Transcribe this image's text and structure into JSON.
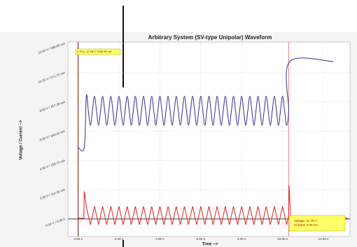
{
  "chart_data": {
    "type": "line",
    "title": "Arbitrary System (SV-type Unipolar) Waveform",
    "x_label": "Time -->",
    "y_label": "Voltage / Current -->",
    "annotations": [
      "0.25 s, 12.98 V / 836.96 mA",
      "Voltage: 11.75 V",
      "Current: 4.94 mA"
    ],
    "xlim": [
      -0.5,
      13.3
    ],
    "ylim": [
      -1.2,
      12.1
    ],
    "xticks": [
      {
        "value": 0,
        "label": "0.00 s"
      },
      {
        "value": 2,
        "label": "2.00 s"
      },
      {
        "value": 4,
        "label": "4.00 s"
      },
      {
        "value": 6,
        "label": "6.00 s"
      },
      {
        "value": 8,
        "label": "8.00 s"
      },
      {
        "value": 10,
        "label": "10.00 s"
      },
      {
        "value": 12,
        "label": "12.00 s"
      }
    ],
    "yticks": [
      {
        "value": 0,
        "label": "0.00 V / 0.00 A"
      },
      {
        "value": 2,
        "label": "2.00 V / 114.35 mA"
      },
      {
        "value": 4,
        "label": "4.00 V / 228.70 mA"
      },
      {
        "value": 6,
        "label": "6.00 V / 343.04 mA"
      },
      {
        "value": 8,
        "label": "8.00 V / 457.39 mA"
      },
      {
        "value": 10,
        "label": "10.00 V / 571.74 mA"
      },
      {
        "value": 12,
        "label": "12.00 V / 686.09 mA"
      }
    ],
    "grid": true,
    "vlines": [
      {
        "x": 0,
        "color": "#7a1010"
      },
      {
        "x": 10.3,
        "color": "#f08080"
      }
    ],
    "series": [
      {
        "color": "#2c3196",
        "smooth": true,
        "x": [
          0,
          0.3,
          0.4,
          0.5,
          0.6,
          0.7,
          0.8,
          0.9,
          1.0,
          1.1,
          1.2,
          1.3,
          1.4,
          1.5,
          1.6,
          1.7,
          1.8,
          1.9,
          2.0,
          2.1,
          2.2,
          2.3,
          2.4,
          2.5,
          2.6,
          2.7,
          2.8,
          2.9,
          3.0,
          3.1,
          3.2,
          3.3,
          3.4,
          3.5,
          3.6,
          3.7,
          3.8,
          3.9,
          4.0,
          4.1,
          4.2,
          4.3,
          4.4,
          4.5,
          4.6,
          4.7,
          4.8,
          4.9,
          5.0,
          5.1,
          5.2,
          5.3,
          5.4,
          5.5,
          5.6,
          5.7,
          5.8,
          5.9,
          6.0,
          6.1,
          6.2,
          6.3,
          6.4,
          6.5,
          6.6,
          6.7,
          6.8,
          6.9,
          7.0,
          7.1,
          7.2,
          7.3,
          7.4,
          7.5,
          7.6,
          7.7,
          7.8,
          7.9,
          8.0,
          8.1,
          8.2,
          8.3,
          8.4,
          8.5,
          8.6,
          8.7,
          8.8,
          8.9,
          9.0,
          9.1,
          9.2,
          9.3,
          9.4,
          9.5,
          9.6,
          9.7,
          9.8,
          9.9,
          10.0,
          10.1,
          10.2,
          10.3,
          10.35,
          12.5
        ],
        "values": [
          4.9,
          4.9,
          8.4,
          7.4,
          6.4,
          7.4,
          8.4,
          7.4,
          6.4,
          7.4,
          8.4,
          7.4,
          6.4,
          7.4,
          8.4,
          7.4,
          6.4,
          7.4,
          8.4,
          7.4,
          6.4,
          7.4,
          8.4,
          7.4,
          6.4,
          7.4,
          8.4,
          7.4,
          6.4,
          7.4,
          8.4,
          7.4,
          6.4,
          7.4,
          8.4,
          7.4,
          6.4,
          7.4,
          8.4,
          7.4,
          6.4,
          7.4,
          8.4,
          7.4,
          6.4,
          7.4,
          8.4,
          7.4,
          6.4,
          7.4,
          8.4,
          7.4,
          6.4,
          7.4,
          8.4,
          7.4,
          6.4,
          7.4,
          8.4,
          7.4,
          6.4,
          7.4,
          8.4,
          7.4,
          6.4,
          7.4,
          8.4,
          7.4,
          6.4,
          7.4,
          8.4,
          7.4,
          6.4,
          7.4,
          8.4,
          7.4,
          6.4,
          7.4,
          8.4,
          7.4,
          6.4,
          7.4,
          8.4,
          7.4,
          6.4,
          7.4,
          8.4,
          7.4,
          6.4,
          7.4,
          8.4,
          7.4,
          6.4,
          7.4,
          8.4,
          7.4,
          6.4,
          7.4,
          8.4,
          7.4,
          6.4,
          7.4,
          10.76,
          10.76
        ]
      },
      {
        "color": "#e02020",
        "smooth": false,
        "x": [
          0,
          0.28,
          0.3,
          0.4,
          0.5,
          0.6,
          0.7,
          0.8,
          0.9,
          1.0,
          1.1,
          1.2,
          1.3,
          1.4,
          1.5,
          1.6,
          1.7,
          1.8,
          1.9,
          2.0,
          2.1,
          2.2,
          2.3,
          2.4,
          2.5,
          2.6,
          2.7,
          2.8,
          2.9,
          3.0,
          3.1,
          3.2,
          3.3,
          3.4,
          3.5,
          3.6,
          3.7,
          3.8,
          3.9,
          4.0,
          4.1,
          4.2,
          4.3,
          4.4,
          4.5,
          4.6,
          4.7,
          4.8,
          4.9,
          5.0,
          5.1,
          5.2,
          5.3,
          5.4,
          5.5,
          5.6,
          5.7,
          5.8,
          5.9,
          6.0,
          6.1,
          6.2,
          6.3,
          6.4,
          6.5,
          6.6,
          6.7,
          6.8,
          6.9,
          7.0,
          7.1,
          7.2,
          7.3,
          7.4,
          7.5,
          7.6,
          7.7,
          7.8,
          7.9,
          8.0,
          8.1,
          8.2,
          8.3,
          8.4,
          8.5,
          8.6,
          8.7,
          8.8,
          8.9,
          9.0,
          9.1,
          9.2,
          9.3,
          9.4,
          9.5,
          9.6,
          9.7,
          9.8,
          9.9,
          10.0,
          10.1,
          10.2,
          10.3,
          10.32,
          10.4,
          13.2
        ],
        "values": [
          0.05,
          0.05,
          1.9,
          0.86,
          0.23,
          -0.4,
          0.23,
          0.86,
          0.23,
          -0.4,
          0.23,
          0.86,
          0.23,
          -0.4,
          0.23,
          0.86,
          0.23,
          -0.4,
          0.23,
          0.86,
          0.23,
          -0.4,
          0.23,
          0.86,
          0.23,
          -0.4,
          0.23,
          0.86,
          0.23,
          -0.4,
          0.23,
          0.86,
          0.23,
          -0.4,
          0.23,
          0.86,
          0.23,
          -0.4,
          0.23,
          0.86,
          0.23,
          -0.4,
          0.23,
          0.86,
          0.23,
          -0.4,
          0.23,
          0.86,
          0.23,
          -0.4,
          0.23,
          0.86,
          0.23,
          -0.4,
          0.23,
          0.86,
          0.23,
          -0.4,
          0.23,
          0.86,
          0.23,
          -0.4,
          0.23,
          0.86,
          0.23,
          -0.4,
          0.23,
          0.86,
          0.23,
          -0.4,
          0.23,
          0.86,
          0.23,
          -0.4,
          0.23,
          0.86,
          0.23,
          -0.4,
          0.23,
          0.86,
          0.23,
          -0.4,
          0.23,
          0.86,
          0.23,
          -0.4,
          0.23,
          0.86,
          0.23,
          -0.4,
          0.23,
          0.86,
          0.23,
          -0.4,
          0.23,
          0.86,
          0.23,
          -0.4,
          0.23,
          0.86,
          0.23,
          -0.4,
          0.23,
          2.3,
          0.05,
          0.05
        ]
      }
    ]
  }
}
